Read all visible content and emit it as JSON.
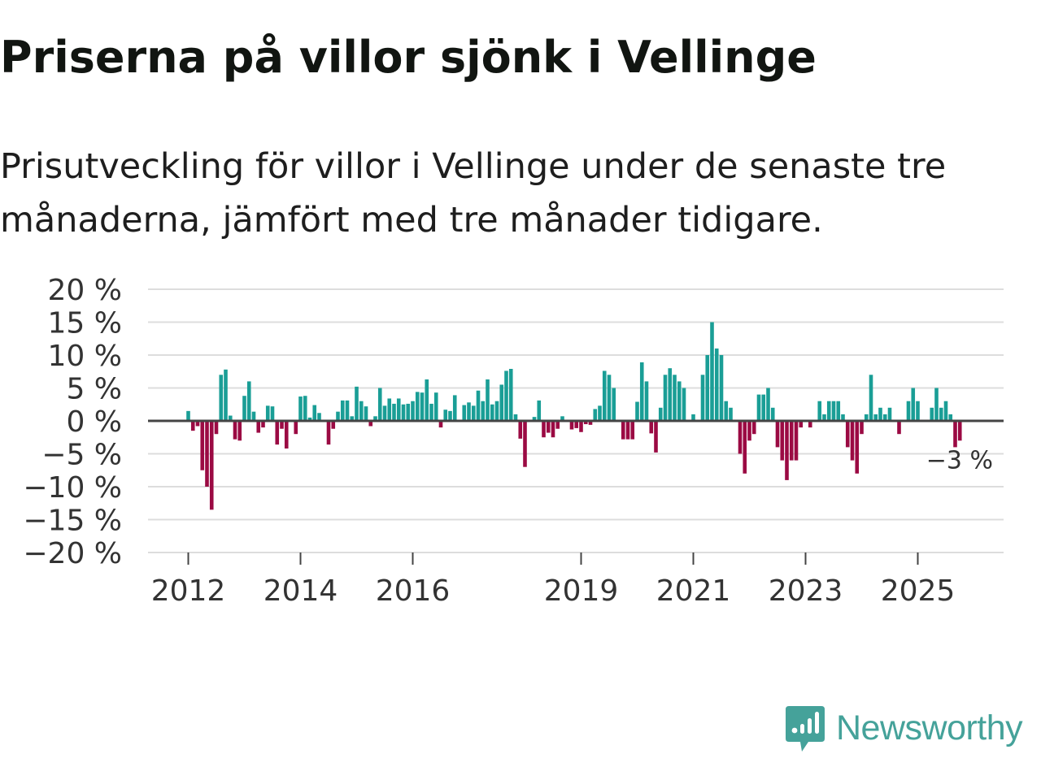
{
  "title": "Priserna på villor sjönk i Vellinge",
  "subtitle": "Prisutveckling för villor i Vellinge under de senaste tre månaderna, jämfört med tre månader tidigare.",
  "brand": {
    "name": "Newsworthy",
    "icon": "newsworthy-logo-icon"
  },
  "colors": {
    "positive": "#1a9e96",
    "negative": "#9b0a43",
    "grid": "#dddddd",
    "zero_line": "#444444",
    "text": "#333333",
    "brand": "#45a29a"
  },
  "chart_data": {
    "type": "bar",
    "title": "Priserna på villor sjönk i Vellinge",
    "xlabel": "",
    "ylabel": "",
    "ylim": [
      -20,
      20
    ],
    "yticks": [
      20,
      15,
      10,
      5,
      0,
      -5,
      -10,
      -15,
      -20
    ],
    "ytick_labels": [
      "20 %",
      "15 %",
      "10 %",
      "5 %",
      "0 %",
      "−5 %",
      "−10 %",
      "−15 %",
      "−20 %"
    ],
    "xticks": [
      {
        "label": "2012",
        "month_index": 0
      },
      {
        "label": "2014",
        "month_index": 24
      },
      {
        "label": "2016",
        "month_index": 48
      },
      {
        "label": "2019",
        "month_index": 84
      },
      {
        "label": "2021",
        "month_index": 108
      },
      {
        "label": "2023",
        "month_index": 132
      },
      {
        "label": "2025",
        "month_index": 156
      }
    ],
    "start": "2012-01",
    "grid": true,
    "annotation": {
      "text": "−3 %",
      "month_index": 168
    },
    "values": [
      1.5,
      -1.5,
      -0.8,
      -7.5,
      -10,
      -13.5,
      -2,
      7,
      7.8,
      0.8,
      -2.8,
      -3,
      3.8,
      6,
      1.4,
      -1.8,
      -1,
      2.3,
      2.2,
      -3.6,
      -1.2,
      -4.2,
      0,
      -2,
      3.7,
      3.8,
      0.5,
      2.4,
      1.2,
      0,
      -3.6,
      -1.2,
      1.4,
      3.1,
      3.1,
      0.7,
      5.2,
      3,
      2.2,
      -0.8,
      0.7,
      5,
      2.3,
      3.4,
      2.6,
      3.4,
      2.5,
      2.6,
      3,
      4.4,
      4.3,
      6.3,
      2.6,
      4.3,
      -1,
      1.7,
      1.5,
      3.9,
      0,
      2.4,
      2.8,
      2.3,
      4.6,
      3,
      6.3,
      2.5,
      3,
      5.5,
      7.6,
      7.9,
      1,
      -2.7,
      -7,
      0,
      0.6,
      3.1,
      -2.5,
      -1.8,
      -2.5,
      -1.2,
      0.7,
      0,
      -1.3,
      -1.1,
      -1.7,
      -0.5,
      -0.6,
      1.8,
      2.3,
      7.6,
      7,
      5,
      0,
      -2.8,
      -2.8,
      -2.8,
      2.9,
      8.9,
      6,
      -1.9,
      -4.8,
      2,
      7,
      8,
      7,
      6,
      5,
      0,
      1,
      0,
      7,
      10,
      15,
      11,
      10,
      3,
      2,
      0,
      -5,
      -8,
      -3,
      -2,
      4,
      4,
      5,
      2,
      -4,
      -6,
      -9,
      -6,
      -6,
      -1,
      0,
      -1,
      0,
      3,
      1,
      3,
      3,
      3,
      1,
      -4,
      -6,
      -8,
      -2,
      1,
      7,
      1,
      2,
      1,
      2,
      0,
      -2,
      0,
      3,
      5,
      3,
      0,
      0,
      2,
      5,
      2,
      3,
      1,
      -4,
      -3
    ]
  }
}
